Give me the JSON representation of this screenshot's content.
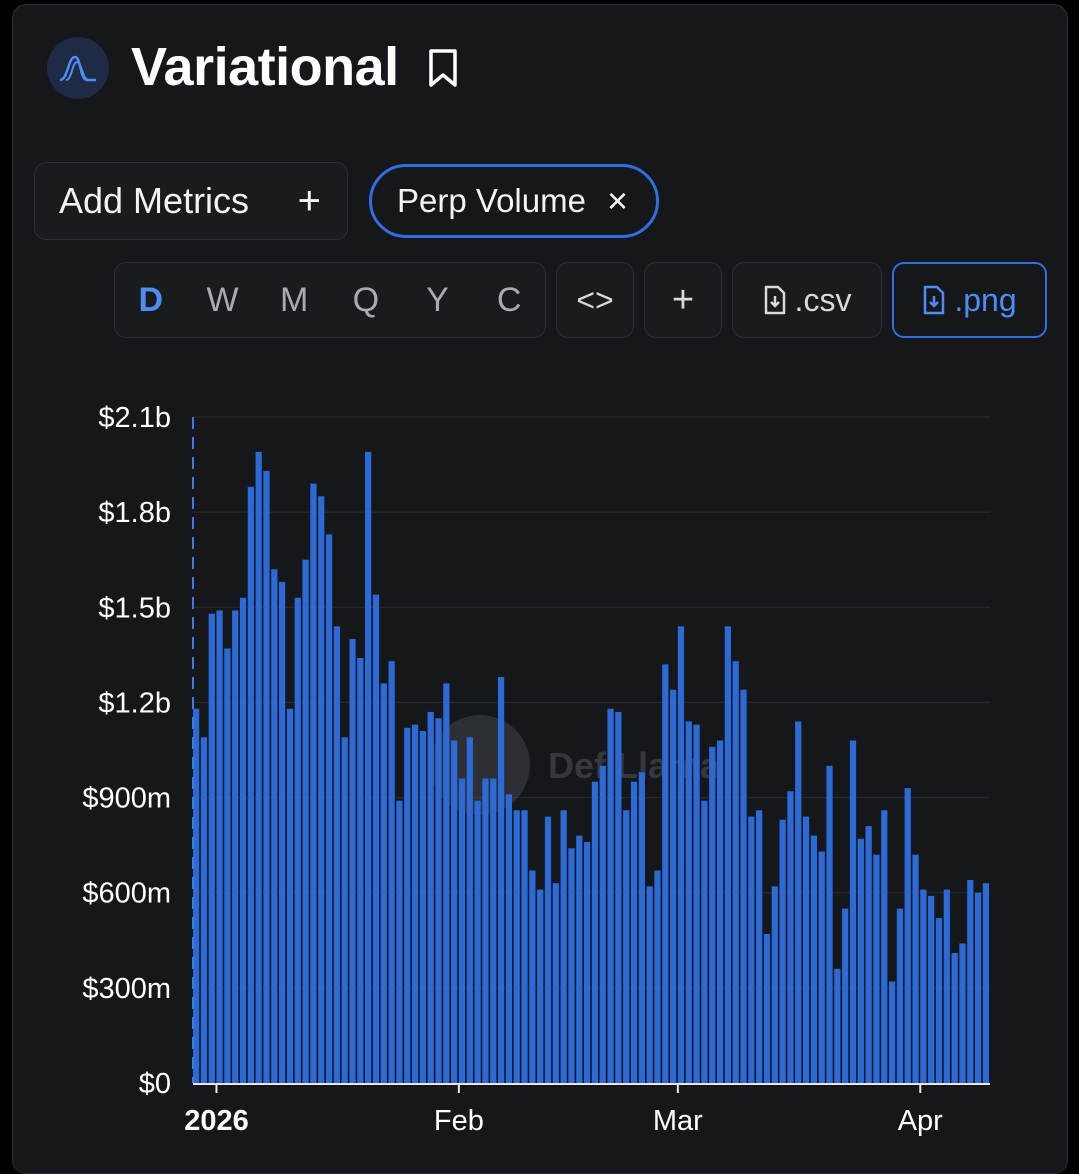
{
  "header": {
    "title": "Variational"
  },
  "controls": {
    "add_metrics_label": "Add Metrics",
    "add_metrics_icon": "+",
    "metric_pill_label": "Perp Volume",
    "metric_pill_close": "×",
    "periods": [
      "D",
      "W",
      "M",
      "Q",
      "Y",
      "C"
    ],
    "active_period": "D",
    "embed_label": "<>",
    "add_chart_label": "+",
    "csv_label": ".csv",
    "png_label": ".png"
  },
  "colors": {
    "bar": "#2c6ad6",
    "accent": "#2f6fe0",
    "background": "#16171b",
    "grid": "#2a2c31"
  },
  "chart_data": {
    "type": "bar",
    "watermark": "DefiLlama",
    "ylim": [
      0,
      2100000000
    ],
    "yticks": [
      {
        "value": 0,
        "label": "$0"
      },
      {
        "value": 300000000,
        "label": "$300m"
      },
      {
        "value": 600000000,
        "label": "$600m"
      },
      {
        "value": 900000000,
        "label": "$900m"
      },
      {
        "value": 1200000000,
        "label": "$1.2b"
      },
      {
        "value": 1500000000,
        "label": "$1.5b"
      },
      {
        "value": 1800000000,
        "label": "$1.8b"
      },
      {
        "value": 2100000000,
        "label": "$2.1b"
      }
    ],
    "xticks": [
      {
        "date": "2026-01-01",
        "label": "2026",
        "bold": true
      },
      {
        "date": "2026-02-01",
        "label": "Feb",
        "bold": false
      },
      {
        "date": "2026-03-01",
        "label": "Mar",
        "bold": false
      },
      {
        "date": "2026-04-01",
        "label": "Apr",
        "bold": false
      }
    ],
    "x_start": "2025-12-29",
    "series": [
      {
        "values": [
          1180000000,
          1090000000,
          1480000000,
          1490000000,
          1370000000,
          1490000000,
          1530000000,
          1880000000,
          1990000000,
          1930000000,
          1620000000,
          1580000000,
          1180000000,
          1530000000,
          1650000000,
          1890000000,
          1850000000,
          1730000000,
          1440000000,
          1090000000,
          1400000000,
          1340000000,
          1990000000,
          1540000000,
          1260000000,
          1330000000,
          890000000,
          1120000000,
          1130000000,
          1110000000,
          1170000000,
          1150000000,
          1260000000,
          1080000000,
          960000000,
          1090000000,
          890000000,
          960000000,
          960000000,
          1280000000,
          910000000,
          860000000,
          860000000,
          670000000,
          610000000,
          840000000,
          630000000,
          860000000,
          740000000,
          780000000,
          760000000,
          950000000,
          1000000000,
          1180000000,
          1170000000,
          860000000,
          950000000,
          980000000,
          620000000,
          670000000,
          1320000000,
          1240000000,
          1440000000,
          1140000000,
          1130000000,
          890000000,
          1060000000,
          1080000000,
          1440000000,
          1330000000,
          1240000000,
          840000000,
          860000000,
          470000000,
          620000000,
          830000000,
          920000000,
          1140000000,
          840000000,
          780000000,
          730000000,
          1000000000,
          360000000,
          550000000,
          1080000000,
          770000000,
          810000000,
          720000000,
          860000000,
          320000000,
          550000000,
          930000000,
          720000000,
          610000000,
          590000000,
          520000000,
          610000000,
          410000000,
          440000000,
          640000000,
          600000000,
          630000000
        ]
      }
    ]
  }
}
